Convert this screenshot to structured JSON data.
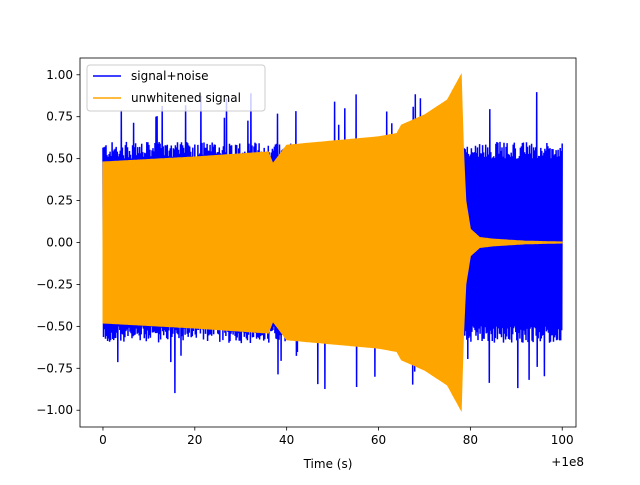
{
  "chart_data": {
    "type": "line",
    "title": "",
    "xlabel": "Time (s)",
    "ylabel": "",
    "x_offset_label": "+1e8",
    "xlim": [
      -5,
      103
    ],
    "ylim": [
      -1.1,
      1.1
    ],
    "x_ticks": [
      0,
      20,
      40,
      60,
      80,
      100
    ],
    "y_ticks": [
      -1.0,
      -0.75,
      -0.5,
      -0.25,
      0.0,
      0.25,
      0.5,
      0.75,
      1.0
    ],
    "x_tick_labels": [
      "0",
      "20",
      "40",
      "60",
      "80",
      "100"
    ],
    "y_tick_labels": [
      "−1.00",
      "−0.75",
      "−0.50",
      "−0.25",
      "0.00",
      "0.25",
      "0.50",
      "0.75",
      "1.00"
    ],
    "grid": false,
    "legend_position": "top-left",
    "series": [
      {
        "name": "signal+noise",
        "color": "#0000ff",
        "x_range": [
          0,
          100
        ],
        "typical_amplitude": [
          -0.55,
          0.55
        ],
        "extremes": [
          -0.95,
          0.85
        ]
      },
      {
        "name": "unwhitened signal",
        "color": "#ffa500",
        "envelope": {
          "x": [
            0,
            20,
            36,
            37,
            40,
            60,
            64,
            65,
            70,
            75,
            78,
            78.5,
            79,
            80,
            82,
            85,
            92,
            100
          ],
          "upper": [
            0.48,
            0.51,
            0.54,
            0.47,
            0.58,
            0.63,
            0.65,
            0.7,
            0.76,
            0.85,
            1.0,
            0.55,
            0.25,
            0.08,
            0.03,
            0.02,
            0.008,
            0.003
          ]
        }
      }
    ]
  }
}
